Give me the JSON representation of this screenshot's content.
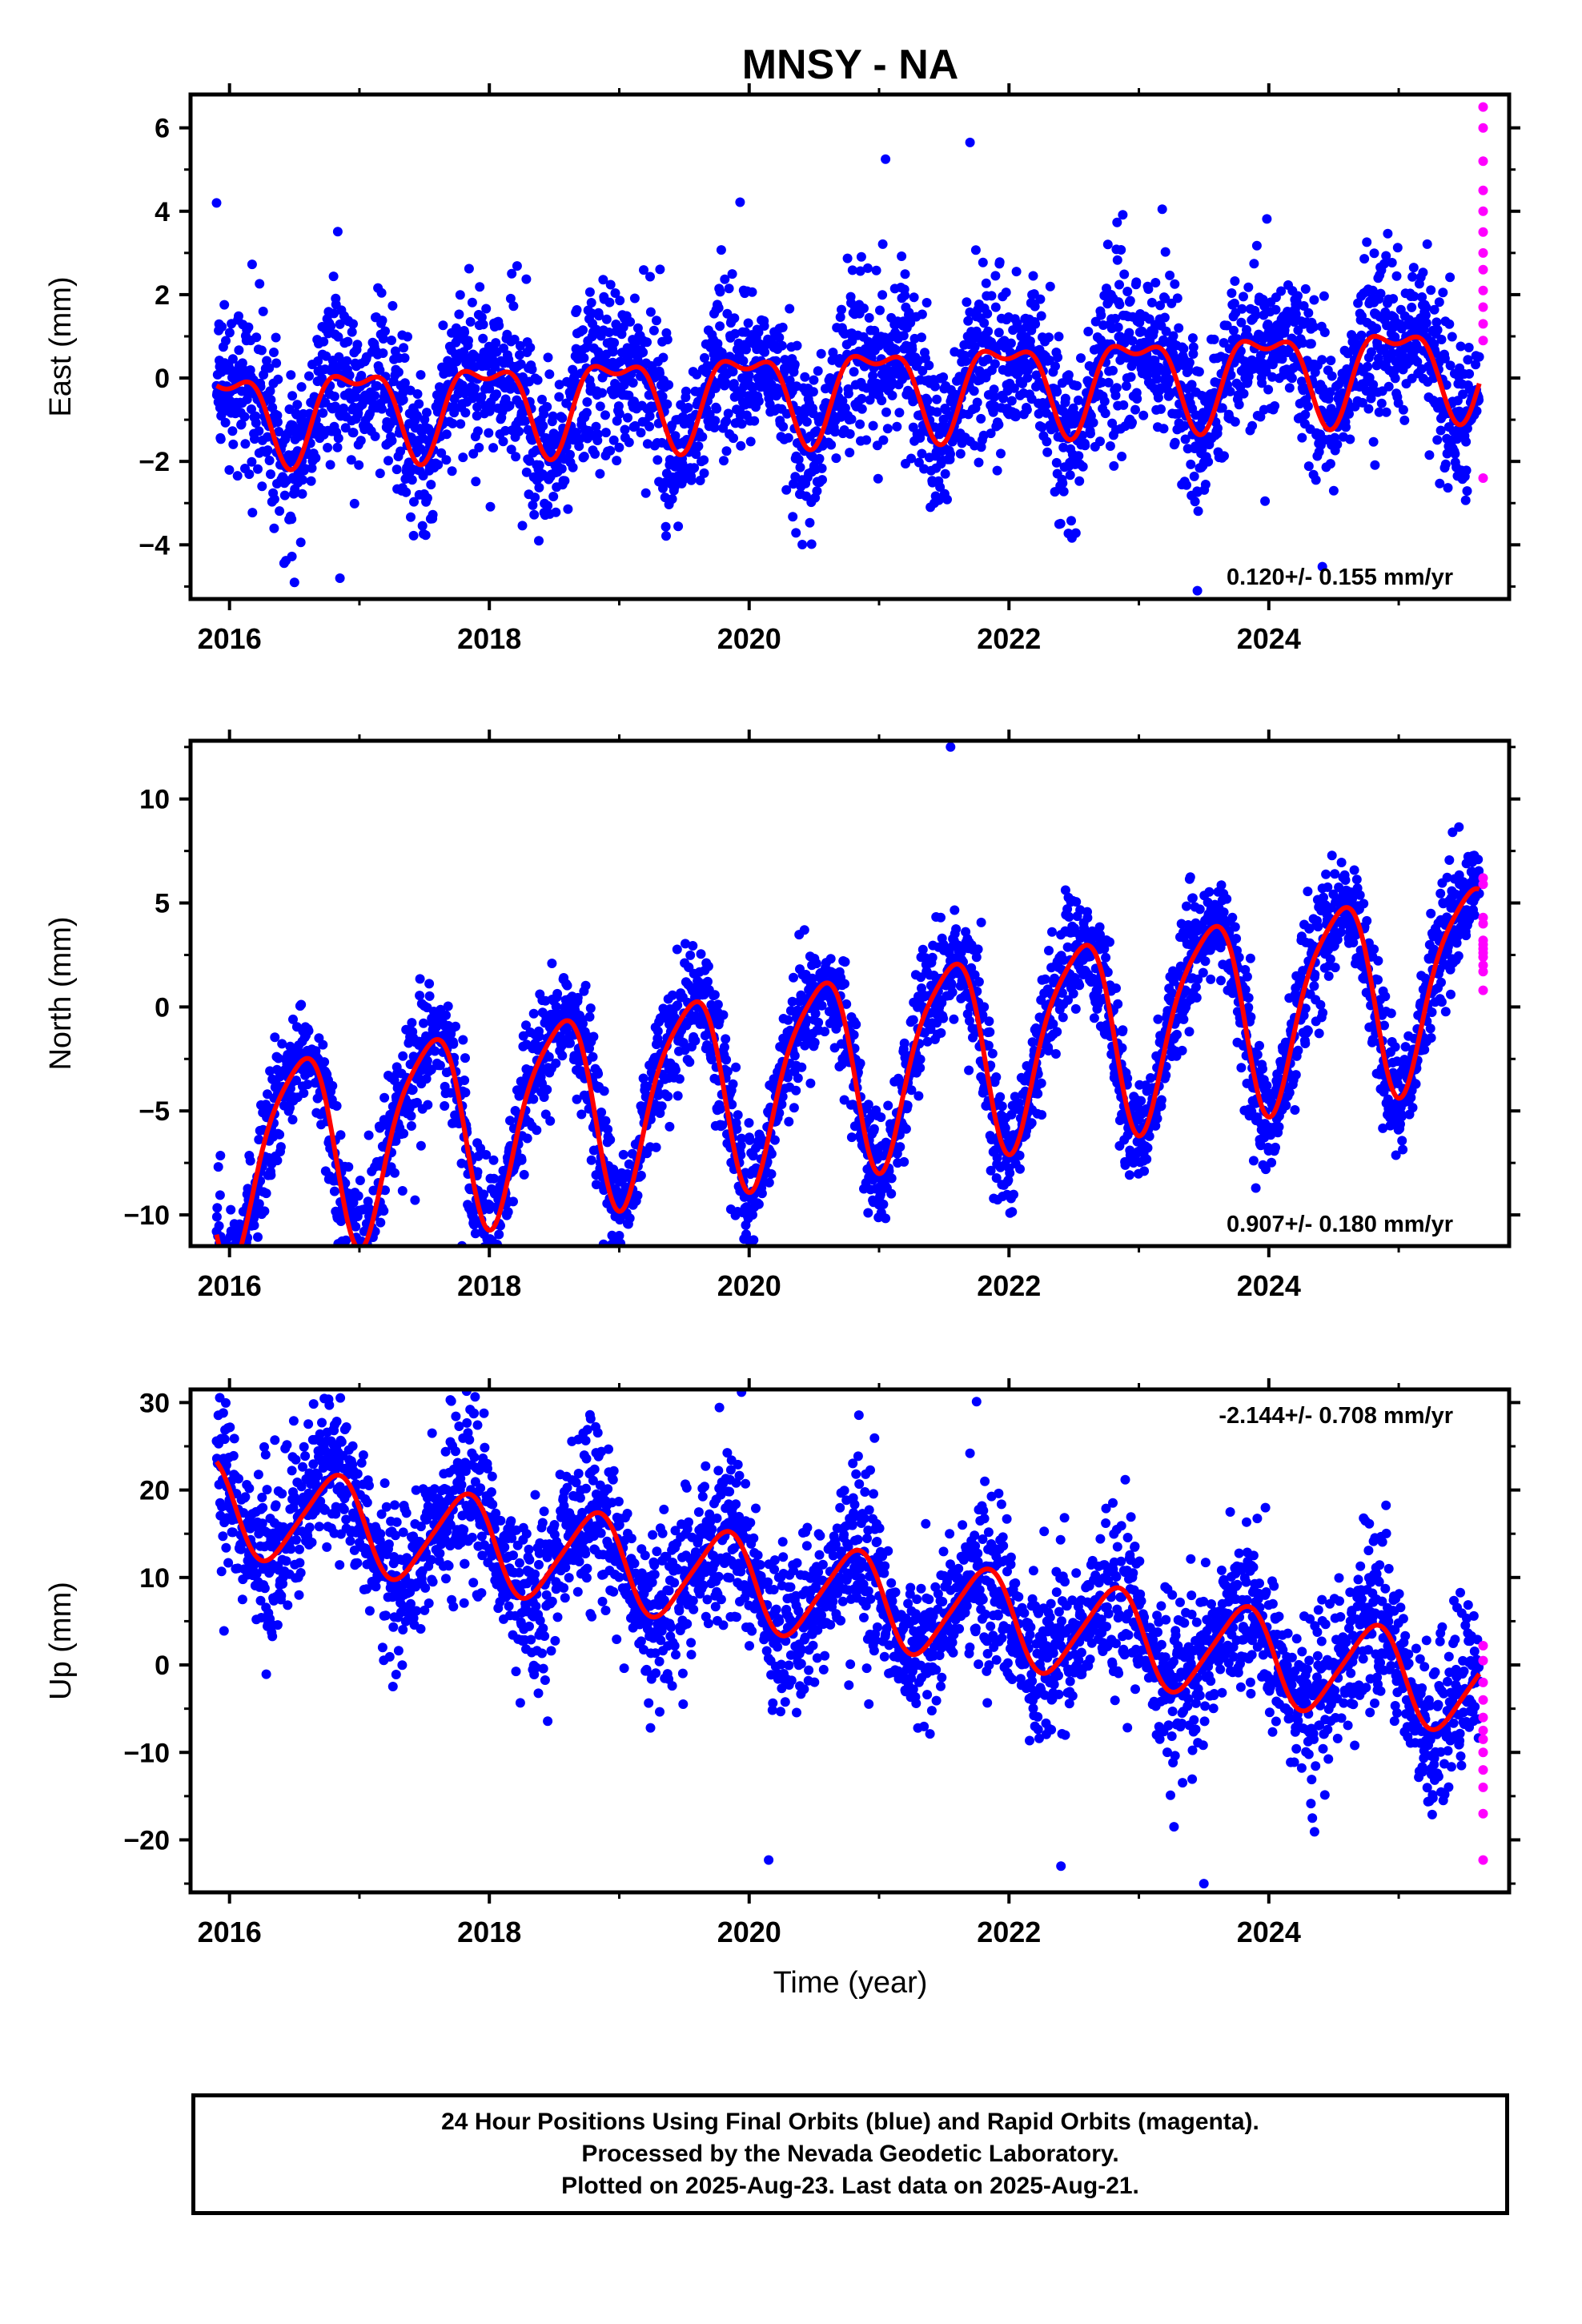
{
  "title": "MNSY - NA",
  "colors": {
    "final": "#0000ff",
    "rapid": "#ff00ff",
    "fit": "#ff0000",
    "axis": "#000000"
  },
  "chart_data": [
    {
      "type": "scatter",
      "ylabel": "East (mm)",
      "xlabel": "",
      "xlim": [
        2015.7,
        2025.85
      ],
      "ylim": [
        -5.3,
        6.8
      ],
      "yticks": [
        -4,
        -2,
        0,
        2,
        4,
        6
      ],
      "xticks": [
        2016,
        2018,
        2020,
        2022,
        2024
      ],
      "rate_label": "0.120+/- 0.155 mm/yr",
      "rate_label_pos": "bottom-right",
      "model": {
        "start": 2015.9,
        "end": 2025.62,
        "offset": -0.33,
        "slope": 0.12,
        "annual_amp": 1.0,
        "annual_phase": 0.72,
        "semiannual_amp": 0.45,
        "semiannual_phase": 0.1
      },
      "rapid_points": [
        6.5,
        6.0,
        5.2,
        4.5,
        4.0,
        3.5,
        3.0,
        2.6,
        2.1,
        1.7,
        1.3,
        0.9,
        -2.4
      ],
      "outliers": [
        [
          2015.9,
          4.2
        ],
        [
          2016.5,
          -4.9
        ],
        [
          2016.85,
          -4.8
        ],
        [
          2021.05,
          5.25
        ],
        [
          2021.7,
          5.65
        ],
        [
          2023.45,
          -5.1
        ]
      ]
    },
    {
      "type": "scatter",
      "ylabel": "North (mm)",
      "xlabel": "",
      "xlim": [
        2015.7,
        2025.85
      ],
      "ylim": [
        -11.5,
        12.8
      ],
      "yticks": [
        -10,
        -5,
        0,
        5,
        10
      ],
      "xticks": [
        2016,
        2018,
        2020,
        2022,
        2024
      ],
      "rate_label": "0.907+/- 0.180 mm/yr",
      "rate_label_pos": "bottom-right",
      "model": {
        "start": 2015.9,
        "end": 2025.62,
        "offset": -3.55,
        "slope": 0.907,
        "annual_amp": 4.6,
        "annual_phase": 0.28,
        "semiannual_amp": 0.9,
        "semiannual_phase": 0.6
      },
      "rapid_points": [
        6.2,
        5.9,
        4.3,
        4.0,
        3.2,
        3.0,
        2.8,
        2.6,
        2.4,
        2.0,
        1.7,
        0.8
      ],
      "outliers": [
        [
          2021.55,
          12.5
        ],
        [
          2019.0,
          -11.0
        ],
        [
          2015.9,
          -10.8
        ]
      ]
    },
    {
      "type": "scatter",
      "ylabel": "Up (mm)",
      "xlabel": "Time (year)",
      "xlim": [
        2015.7,
        2025.85
      ],
      "ylim": [
        -26,
        31.5
      ],
      "yticks": [
        -20,
        -10,
        0,
        10,
        20,
        30
      ],
      "xticks": [
        2016,
        2018,
        2020,
        2022,
        2024
      ],
      "rate_label": "-2.144+/- 0.708 mm/yr",
      "rate_label_pos": "top-right",
      "model": {
        "start": 2015.9,
        "end": 2025.62,
        "offset": 9.4,
        "slope": -2.144,
        "annual_amp": 5.3,
        "annual_phase": 0.55,
        "semiannual_amp": 0.8,
        "semiannual_phase": 0.3
      },
      "rapid_points": [
        2.2,
        0.5,
        -2.0,
        -4.0,
        -6.0,
        -7.5,
        -8.5,
        -10.0,
        -12.0,
        -14.0,
        -17.0,
        -22.3
      ],
      "outliers": [
        [
          2017.7,
          30.3
        ],
        [
          2016.9,
          27.2
        ],
        [
          2017.7,
          25.5
        ],
        [
          2021.7,
          24.2
        ],
        [
          2020.15,
          -22.3
        ],
        [
          2023.5,
          -25.0
        ],
        [
          2022.4,
          -23.0
        ]
      ]
    }
  ],
  "footer": {
    "line1": "24 Hour Positions Using Final Orbits (blue) and Rapid Orbits (magenta).",
    "line2": "Processed by the Nevada Geodetic Laboratory.",
    "line3": "Plotted on 2025-Aug-23. Last data on 2025-Aug-21."
  }
}
